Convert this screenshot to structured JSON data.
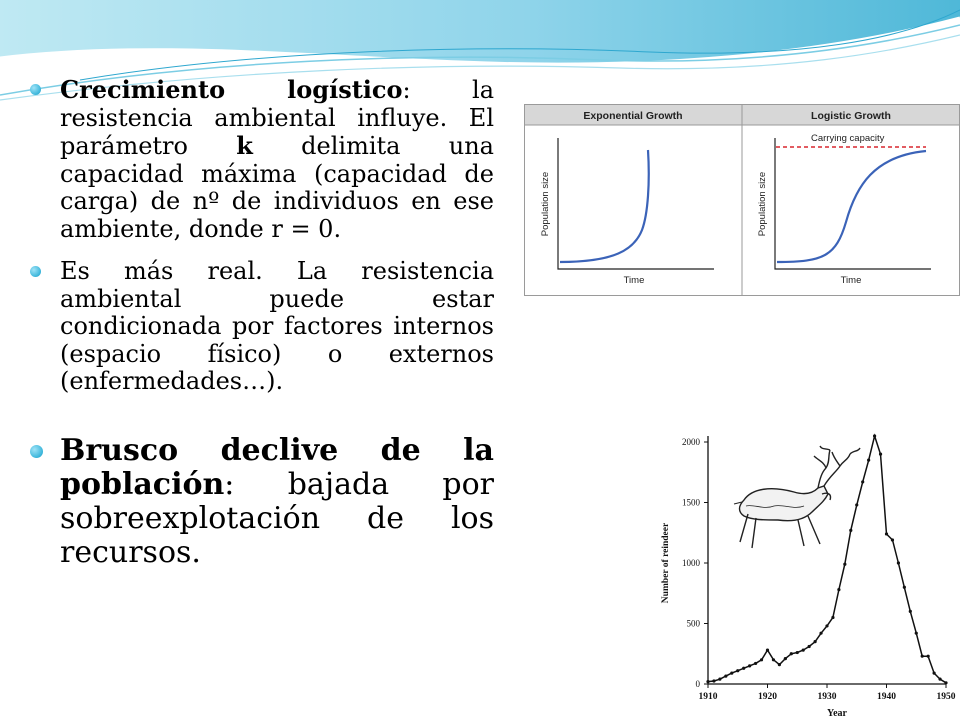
{
  "slide": {
    "bullets": [
      {
        "bold_term": "Crecimiento logístico",
        "text_a": ": la resistencia ambiental influye. El parámetro ",
        "bold_k": "k",
        "text_b": " delimita una capacidad máxima (capacidad de carga) de nº de individuos en ese ambiente, donde r = 0."
      },
      {
        "text": "Es más real. La resistencia ambiental puede estar condicionada por factores internos (espacio físico) o externos (enfermedades…)."
      },
      {
        "bold_term": "Brusco declive de la población",
        "text": ": bajada por sobreexplotación de los recursos."
      }
    ]
  },
  "growth_figure": {
    "panels": [
      {
        "title": "Exponential Growth",
        "xlabel": "Time",
        "ylabel": "Population size"
      },
      {
        "title": "Logistic Growth",
        "xlabel": "Time",
        "ylabel": "Population size",
        "annotation": "Carrying capacity"
      }
    ],
    "colors": {
      "curve": "#3b63b8",
      "capacity": "#d8262e",
      "header_bg": "#d7d7d7"
    }
  },
  "chart_data": {
    "type": "line",
    "xlabel": "Year",
    "ylabel": "Number of reindeer",
    "xlim": [
      1910,
      1950
    ],
    "ylim": [
      0,
      2000
    ],
    "xticks": [
      1910,
      1920,
      1930,
      1940,
      1950
    ],
    "yticks": [
      0,
      500,
      1000,
      1500,
      2000
    ],
    "series": [
      {
        "x": [
          1910,
          1911,
          1912,
          1913,
          1914,
          1915,
          1916,
          1917,
          1918,
          1919,
          1920,
          1921,
          1922,
          1923,
          1924,
          1925,
          1926,
          1927,
          1928,
          1929,
          1930,
          1931,
          1932,
          1933,
          1934,
          1935,
          1936,
          1937,
          1938,
          1939,
          1940,
          1941,
          1942,
          1943,
          1944,
          1945,
          1946,
          1947,
          1948,
          1949,
          1950
        ],
        "y": [
          20,
          25,
          40,
          65,
          90,
          110,
          130,
          150,
          170,
          200,
          280,
          200,
          160,
          210,
          250,
          260,
          280,
          310,
          350,
          420,
          480,
          550,
          780,
          990,
          1270,
          1480,
          1670,
          1850,
          2050,
          1900,
          1240,
          1190,
          1000,
          800,
          600,
          420,
          230,
          230,
          90,
          40,
          10
        ]
      }
    ]
  }
}
